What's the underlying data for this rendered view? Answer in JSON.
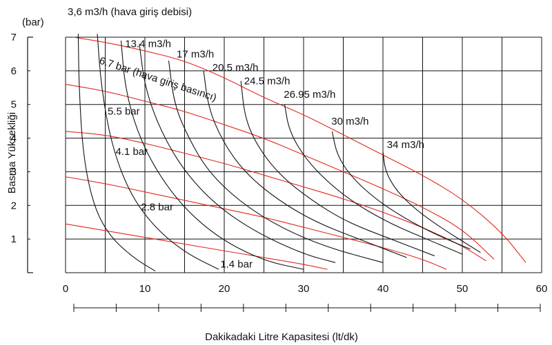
{
  "chart_data": {
    "type": "line",
    "title": "",
    "top_label": "3,6 m3/h (hava giriş debisi)",
    "ylabel": "Basma Yüksekliği",
    "yunit": "(bar)",
    "xlabel": "Dakikadaki Litre Kapasitesi (lt/dk)",
    "xlim": [
      0,
      60
    ],
    "ylim": [
      0,
      7
    ],
    "x_ticks": [
      "0",
      "10",
      "20",
      "30",
      "40",
      "50",
      "60"
    ],
    "y_ticks": [
      "1",
      "2",
      "3",
      "4",
      "5",
      "6",
      "7"
    ],
    "grid": true,
    "pressure_series_color": "#e3261b",
    "flow_series_color": "#111111",
    "pressure_note": "6.7 bar (hava giriş basıncı)",
    "pressure_series": [
      {
        "name": "",
        "points": [
          [
            1,
            7.0
          ],
          [
            5,
            6.85
          ],
          [
            10,
            6.6
          ],
          [
            15,
            6.3
          ],
          [
            20,
            5.8
          ],
          [
            25,
            5.2
          ],
          [
            30,
            4.7
          ],
          [
            35,
            4.1
          ],
          [
            40,
            3.5
          ],
          [
            45,
            2.9
          ],
          [
            50,
            2.2
          ],
          [
            55,
            1.2
          ],
          [
            58,
            0.3
          ]
        ]
      },
      {
        "name": "5.5 bar",
        "points": [
          [
            0,
            5.6
          ],
          [
            5,
            5.4
          ],
          [
            10,
            5.1
          ],
          [
            15,
            4.8
          ],
          [
            20,
            4.4
          ],
          [
            25,
            4.0
          ],
          [
            30,
            3.5
          ],
          [
            35,
            3.0
          ],
          [
            40,
            2.5
          ],
          [
            45,
            1.95
          ],
          [
            50,
            1.3
          ],
          [
            54,
            0.4
          ]
        ]
      },
      {
        "name": "4.1 bar",
        "points": [
          [
            0,
            4.2
          ],
          [
            5,
            4.1
          ],
          [
            10,
            3.85
          ],
          [
            15,
            3.55
          ],
          [
            20,
            3.25
          ],
          [
            25,
            2.9
          ],
          [
            30,
            2.55
          ],
          [
            35,
            2.2
          ],
          [
            40,
            1.8
          ],
          [
            45,
            1.35
          ],
          [
            50,
            0.8
          ],
          [
            53,
            0.35
          ]
        ]
      },
      {
        "name": "2.8 bar",
        "points": [
          [
            0,
            2.85
          ],
          [
            5,
            2.65
          ],
          [
            10,
            2.4
          ],
          [
            15,
            2.15
          ],
          [
            20,
            1.9
          ],
          [
            25,
            1.65
          ],
          [
            30,
            1.35
          ],
          [
            35,
            1.05
          ],
          [
            40,
            0.75
          ],
          [
            45,
            0.4
          ],
          [
            48,
            0.1
          ]
        ]
      },
      {
        "name": "1.4 bar",
        "points": [
          [
            0,
            1.45
          ],
          [
            5,
            1.25
          ],
          [
            10,
            1.05
          ],
          [
            15,
            0.85
          ],
          [
            20,
            0.65
          ],
          [
            25,
            0.45
          ],
          [
            30,
            0.25
          ],
          [
            33,
            0.1
          ]
        ]
      }
    ],
    "flow_series": [
      {
        "name": "",
        "points": [
          [
            1.6,
            7.1
          ],
          [
            1.7,
            5.5
          ],
          [
            2.2,
            3.5
          ],
          [
            3.5,
            2.0
          ],
          [
            5.5,
            1.1
          ],
          [
            8.5,
            0.45
          ],
          [
            11.3,
            0.05
          ]
        ]
      },
      {
        "name": "13.4 m3/h",
        "points": [
          [
            4,
            7.1
          ],
          [
            4.5,
            5.5
          ],
          [
            5.8,
            3.8
          ],
          [
            8,
            2.4
          ],
          [
            11,
            1.4
          ],
          [
            15,
            0.6
          ],
          [
            19.3,
            0.1
          ]
        ]
      },
      {
        "name": "17 m3/h",
        "points": [
          [
            7,
            6.9
          ],
          [
            7.5,
            5.5
          ],
          [
            9,
            4.2
          ],
          [
            11.5,
            3.0
          ],
          [
            15,
            1.9
          ],
          [
            19.5,
            1.0
          ],
          [
            25,
            0.35
          ],
          [
            30,
            0.1
          ]
        ]
      },
      {
        "name": "",
        "points": [
          [
            9.3,
            6.8
          ],
          [
            10,
            5.5
          ],
          [
            12,
            4.2
          ],
          [
            15,
            3.0
          ],
          [
            19,
            2.0
          ],
          [
            24,
            1.2
          ],
          [
            30,
            0.55
          ],
          [
            34,
            0.3
          ]
        ]
      },
      {
        "name": "",
        "points": [
          [
            13,
            6.3
          ],
          [
            13.7,
            5.0
          ],
          [
            15.5,
            4.0
          ],
          [
            18,
            3.0
          ],
          [
            22,
            2.1
          ],
          [
            27,
            1.35
          ],
          [
            33,
            0.75
          ],
          [
            40,
            0.3
          ]
        ]
      },
      {
        "name": "20.5 m3/h",
        "points": [
          [
            17.4,
            6.0
          ],
          [
            18,
            4.9
          ],
          [
            19.8,
            3.9
          ],
          [
            22.5,
            3.0
          ],
          [
            26.5,
            2.2
          ],
          [
            31.5,
            1.5
          ],
          [
            37.5,
            0.95
          ],
          [
            43,
            0.45
          ]
        ]
      },
      {
        "name": "24.5 m3/h",
        "points": [
          [
            22.1,
            5.7
          ],
          [
            22.6,
            4.6
          ],
          [
            24.2,
            3.75
          ],
          [
            27,
            2.9
          ],
          [
            31,
            2.15
          ],
          [
            35.5,
            1.5
          ],
          [
            41,
            1.0
          ],
          [
            46.5,
            0.5
          ]
        ]
      },
      {
        "name": "26.95 m3/h",
        "points": [
          [
            27.6,
            5.0
          ],
          [
            28.2,
            4.2
          ],
          [
            30.2,
            3.4
          ],
          [
            33,
            2.7
          ],
          [
            36.5,
            2.05
          ],
          [
            41,
            1.45
          ],
          [
            45.5,
            1.0
          ],
          [
            50,
            0.55
          ]
        ]
      },
      {
        "name": "30 m3/h",
        "points": [
          [
            33.6,
            4.2
          ],
          [
            34.2,
            3.5
          ],
          [
            36,
            2.85
          ],
          [
            39,
            2.2
          ],
          [
            42.5,
            1.65
          ],
          [
            46.5,
            1.15
          ],
          [
            51,
            0.7
          ]
        ]
      },
      {
        "name": "34 m3/h",
        "points": [
          [
            40,
            3.6
          ],
          [
            40.3,
            3.0
          ],
          [
            41.8,
            2.4
          ],
          [
            44.5,
            1.8
          ],
          [
            48.2,
            1.2
          ],
          [
            52.3,
            0.6
          ]
        ]
      }
    ],
    "ref_scale_ticks": [
      0,
      5,
      10,
      15,
      20,
      25,
      30,
      35,
      40,
      45,
      50,
      55
    ]
  }
}
